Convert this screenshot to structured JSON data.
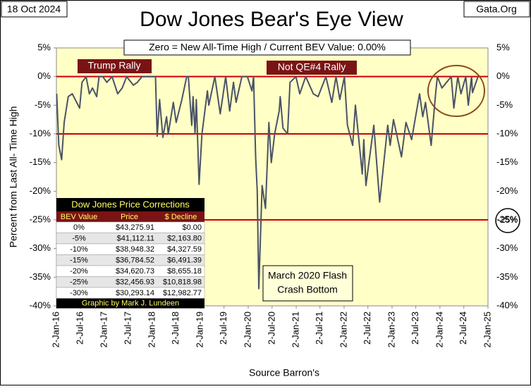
{
  "chart_data": {
    "type": "line",
    "title": "Dow Jones Bear's Eye View",
    "date": "18 Oct 2024",
    "source_site": "Gata.Org",
    "subtitle": "Zero = New All-Time High / Current BEV Value:  0.00%",
    "y_label": "Percent from  Last All- Time  High",
    "x_label": "Source Barron's",
    "ylim": [
      -40,
      5
    ],
    "yticks": [
      {
        "value": 5,
        "label": "5%"
      },
      {
        "value": 0,
        "label": "0%"
      },
      {
        "value": -5,
        "label": "-5%"
      },
      {
        "value": -10,
        "label": "-10%"
      },
      {
        "value": -15,
        "label": "-15%"
      },
      {
        "value": -20,
        "label": "-20%"
      },
      {
        "value": -25,
        "label": "-25%"
      },
      {
        "value": -30,
        "label": "-30%"
      },
      {
        "value": -35,
        "label": "-35%"
      },
      {
        "value": -40,
        "label": "-40%"
      }
    ],
    "xlim": [
      "2016-01-02",
      "2025-01-02"
    ],
    "xticks": [
      {
        "value": "2016-01-02",
        "label": "2-Jan-16"
      },
      {
        "value": "2016-07-02",
        "label": "2-Jul-16"
      },
      {
        "value": "2017-01-02",
        "label": "2-Jan-17"
      },
      {
        "value": "2017-07-02",
        "label": "2-Jul-17"
      },
      {
        "value": "2018-01-02",
        "label": "2-Jan-18"
      },
      {
        "value": "2018-07-02",
        "label": "2-Jul-18"
      },
      {
        "value": "2019-01-02",
        "label": "2-Jan-19"
      },
      {
        "value": "2019-07-02",
        "label": "2-Jul-19"
      },
      {
        "value": "2020-01-02",
        "label": "2-Jan-20"
      },
      {
        "value": "2020-07-02",
        "label": "2-Jul-20"
      },
      {
        "value": "2021-01-02",
        "label": "2-Jan-21"
      },
      {
        "value": "2021-07-02",
        "label": "2-Jul-21"
      },
      {
        "value": "2022-01-02",
        "label": "2-Jan-22"
      },
      {
        "value": "2022-07-02",
        "label": "2-Jul-22"
      },
      {
        "value": "2023-01-02",
        "label": "2-Jan-23"
      },
      {
        "value": "2023-07-02",
        "label": "2-Jul-23"
      },
      {
        "value": "2024-01-02",
        "label": "2-Jan-24"
      },
      {
        "value": "2024-07-02",
        "label": "2-Jul-24"
      },
      {
        "value": "2025-01-02",
        "label": "2-Jan-25"
      }
    ],
    "reference_lines": [
      0,
      -10,
      -25
    ],
    "reference_color": "#d00000",
    "series": [
      {
        "name": "Dow Jones BEV",
        "color": "#4a5366",
        "x": [
          "2016-01-04",
          "2016-01-20",
          "2016-02-11",
          "2016-03-01",
          "2016-04-01",
          "2016-05-02",
          "2016-06-27",
          "2016-07-15",
          "2016-08-15",
          "2016-09-09",
          "2016-10-03",
          "2016-11-04",
          "2016-11-22",
          "2016-12-20",
          "2017-01-20",
          "2017-03-01",
          "2017-04-13",
          "2017-05-17",
          "2017-06-20",
          "2017-08-10",
          "2017-09-10",
          "2017-10-15",
          "2017-12-15",
          "2018-01-26",
          "2018-02-08",
          "2018-02-26",
          "2018-03-23",
          "2018-04-20",
          "2018-05-03",
          "2018-06-11",
          "2018-07-02",
          "2018-08-15",
          "2018-09-21",
          "2018-10-03",
          "2018-10-29",
          "2018-11-08",
          "2018-11-23",
          "2018-12-03",
          "2018-12-24",
          "2019-01-15",
          "2019-02-25",
          "2019-03-08",
          "2019-04-23",
          "2019-06-03",
          "2019-07-15",
          "2019-08-14",
          "2019-09-12",
          "2019-10-02",
          "2019-11-15",
          "2019-12-27",
          "2020-01-31",
          "2020-02-12",
          "2020-02-28",
          "2020-03-11",
          "2020-03-23",
          "2020-04-17",
          "2020-05-13",
          "2020-06-08",
          "2020-06-26",
          "2020-07-22",
          "2020-08-25",
          "2020-09-02",
          "2020-09-23",
          "2020-10-28",
          "2020-11-16",
          "2020-12-31",
          "2021-01-29",
          "2021-03-15",
          "2021-05-12",
          "2021-06-18",
          "2021-08-16",
          "2021-09-30",
          "2021-11-01",
          "2021-11-30",
          "2022-01-04",
          "2022-01-27",
          "2022-03-08",
          "2022-03-29",
          "2022-05-20",
          "2022-06-01",
          "2022-06-17",
          "2022-08-16",
          "2022-09-30",
          "2022-11-30",
          "2022-12-19",
          "2023-01-13",
          "2023-03-15",
          "2023-04-18",
          "2023-05-31",
          "2023-07-31",
          "2023-08-24",
          "2023-09-14",
          "2023-10-27",
          "2023-11-30",
          "2023-12-13",
          "2024-01-17",
          "2024-03-28",
          "2024-04-17",
          "2024-05-17",
          "2024-06-10",
          "2024-07-17",
          "2024-08-05",
          "2024-08-30",
          "2024-09-06",
          "2024-10-18"
        ],
        "values": [
          -3,
          -12,
          -14.5,
          -8,
          -3.5,
          -3,
          -5.5,
          -1,
          0,
          -3,
          -2,
          -3.5,
          0,
          0,
          -1,
          0,
          -3,
          -2,
          0,
          -1.5,
          -1,
          0,
          0,
          0,
          -10.4,
          -4,
          -10.6,
          -7,
          -10,
          -4.5,
          -8,
          -4,
          0,
          0,
          -8.5,
          -3.5,
          -10,
          -4,
          -18.8,
          -10,
          -2.5,
          -5,
          0,
          -6.5,
          0,
          -6,
          -1,
          -4.5,
          0,
          0,
          -2.5,
          0,
          -14,
          -20,
          -37,
          -19,
          -23,
          -8,
          -15,
          -10,
          -6,
          -3.5,
          -9,
          -10,
          -1,
          0,
          -3,
          0,
          -3,
          -3.5,
          0,
          -4.5,
          0,
          -4,
          0,
          -8.5,
          -12,
          -5,
          -17,
          -11,
          -19,
          -8.5,
          -21.9,
          -8.5,
          -12,
          -7.5,
          -14,
          -8,
          -11,
          -3,
          -7,
          -4.5,
          -12,
          -3,
          0,
          -2,
          0,
          -5.5,
          0,
          -3,
          0,
          -5,
          0,
          -2.8,
          0
        ]
      }
    ],
    "annotations": [
      {
        "text": "Trump Rally"
      },
      {
        "text": "Not QE#4 Rally"
      },
      {
        "text": [
          "March 2020 Flash",
          "Crash Bottom"
        ]
      },
      {
        "text": "-25%"
      }
    ],
    "table": {
      "title": "Dow Jones Price Corrections",
      "header": [
        "BEV Value",
        "Price",
        "$ Decline"
      ],
      "rows": [
        [
          "0%",
          "$43,275.91",
          "$0.00"
        ],
        [
          "-5%",
          "$41,112.11",
          "$2,163.80"
        ],
        [
          "-10%",
          "$38,948.32",
          "$4,327.59"
        ],
        [
          "-15%",
          "$36,784.52",
          "$6,491.39"
        ],
        [
          "-20%",
          "$34,620.73",
          "$8,655.18"
        ],
        [
          "-25%",
          "$32,456.93",
          "$10,818.98"
        ],
        [
          "-30%",
          "$30,293.14",
          "$12,982.77"
        ]
      ],
      "footer": "Graphic by Mark J. Lundeen"
    }
  }
}
